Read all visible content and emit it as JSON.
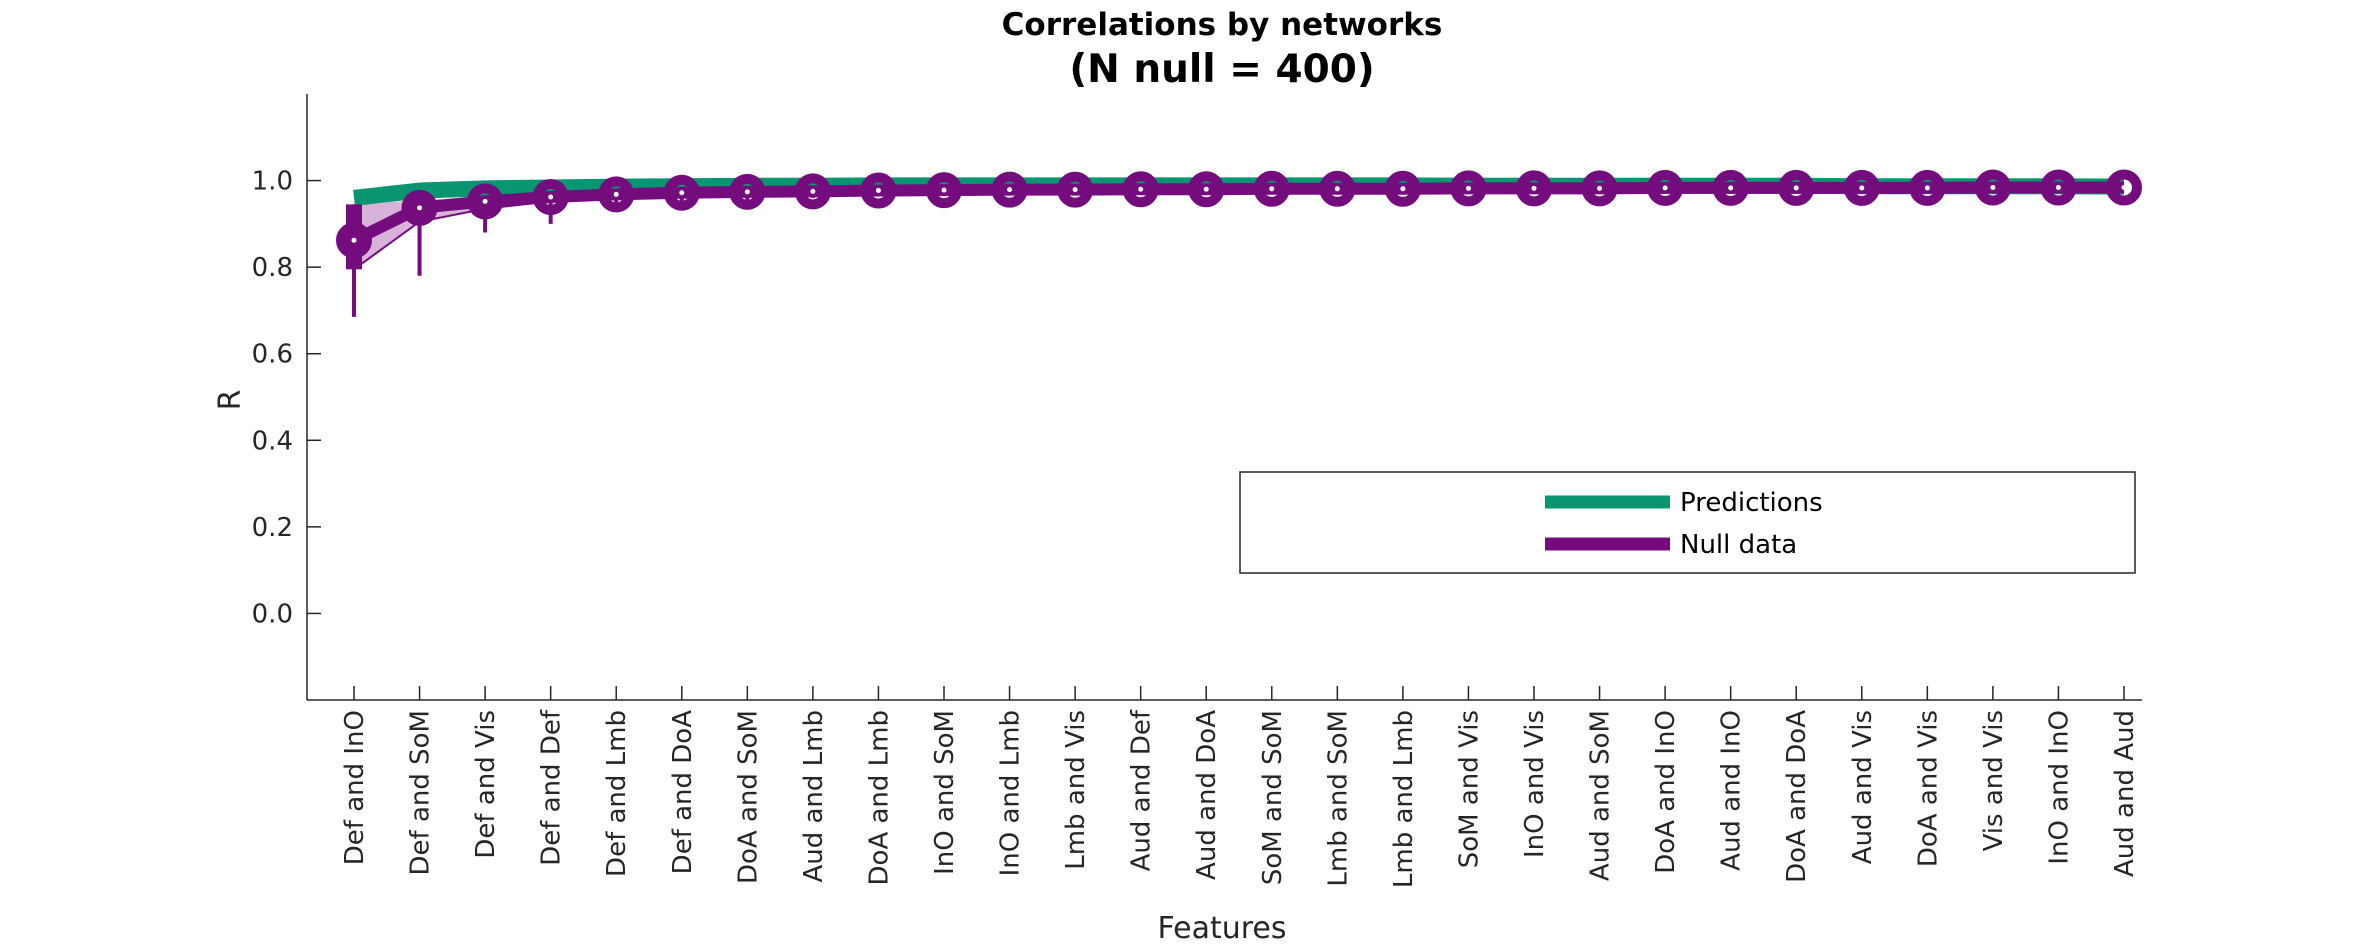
{
  "chart_data": {
    "type": "line",
    "title": "Correlations by networks",
    "subtitle": "(N null = 400)",
    "xlabel": "Features",
    "ylabel": "R",
    "ylim": [
      -0.2,
      1.2
    ],
    "yticks": [
      "0.0",
      "0.2",
      "0.4",
      "0.6",
      "0.8",
      "1.0"
    ],
    "categories": [
      "Def and InO",
      "Def and SoM",
      "Def and Vis",
      "Def and Def",
      "Def and Lmb",
      "Def and DoA",
      "DoA and SoM",
      "Aud and Lmb",
      "DoA and Lmb",
      "InO and SoM",
      "InO and Lmb",
      "Lmb and Vis",
      "Aud and Def",
      "Aud and DoA",
      "SoM and SoM",
      "Lmb and SoM",
      "Lmb and Lmb",
      "SoM and Vis",
      "InO and Vis",
      "Aud and SoM",
      "DoA and InO",
      "Aud and InO",
      "DoA and DoA",
      "Aud and Vis",
      "DoA and Vis",
      "Vis and Vis",
      "InO and InO",
      "Aud and Aud"
    ],
    "series": [
      {
        "name": "Predictions",
        "color": "#079670",
        "values": [
          0.96,
          0.977,
          0.982,
          0.984,
          0.986,
          0.987,
          0.988,
          0.988,
          0.989,
          0.989,
          0.989,
          0.989,
          0.989,
          0.989,
          0.989,
          0.989,
          0.989,
          0.988,
          0.988,
          0.988,
          0.988,
          0.988,
          0.988,
          0.987,
          0.987,
          0.987,
          0.987,
          0.986
        ]
      },
      {
        "name": "Null data",
        "color": "#750c7e",
        "values": [
          0.862,
          0.937,
          0.952,
          0.962,
          0.968,
          0.972,
          0.974,
          0.975,
          0.977,
          0.978,
          0.979,
          0.979,
          0.98,
          0.98,
          0.981,
          0.981,
          0.981,
          0.982,
          0.982,
          0.982,
          0.983,
          0.983,
          0.983,
          0.983,
          0.983,
          0.984,
          0.984,
          0.984
        ],
        "q25": [
          0.795,
          0.905,
          0.935,
          0.952,
          0.962,
          0.967,
          0.97,
          0.972,
          0.974,
          0.976,
          0.977,
          0.977,
          0.978,
          0.978,
          0.979,
          0.979,
          0.979,
          0.98,
          0.98,
          0.98,
          0.981,
          0.981,
          0.981,
          0.981,
          0.981,
          0.982,
          0.982,
          0.982
        ],
        "q75": [
          0.945,
          0.955,
          0.963,
          0.968,
          0.972,
          0.975,
          0.977,
          0.978,
          0.979,
          0.98,
          0.981,
          0.981,
          0.982,
          0.982,
          0.983,
          0.983,
          0.983,
          0.984,
          0.984,
          0.984,
          0.985,
          0.985,
          0.985,
          0.985,
          0.985,
          0.986,
          0.986,
          0.986
        ],
        "min": [
          0.685,
          0.78,
          0.88,
          0.9,
          0.93,
          0.95,
          0.955,
          0.96,
          0.965,
          0.968,
          0.97,
          0.971,
          0.972,
          0.973,
          0.974,
          0.975,
          0.975,
          0.976,
          0.976,
          0.977,
          0.977,
          0.978,
          0.978,
          0.978,
          0.979,
          0.979,
          0.979,
          0.98
        ]
      }
    ],
    "legend": {
      "position": "lower-right",
      "entries": [
        "Predictions",
        "Null data"
      ]
    }
  }
}
